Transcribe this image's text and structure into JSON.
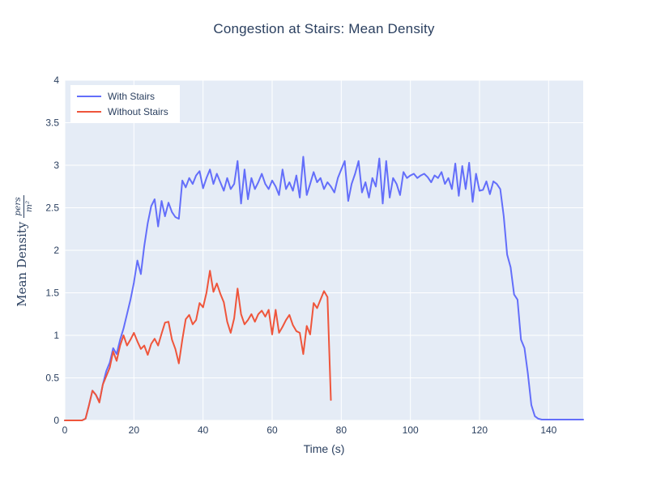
{
  "chart_data": {
    "type": "line",
    "title": "Congestion at Stairs: Mean Density",
    "xlabel": "Time (s)",
    "ylabel": "Mean Density pers/m²",
    "ylabel_text": "Mean Density",
    "ylabel_unit_numerator": "pers",
    "ylabel_unit_denominator": "m²",
    "xlim": [
      0,
      150
    ],
    "ylim": [
      0,
      4
    ],
    "xticks": [
      0,
      20,
      40,
      60,
      80,
      100,
      120,
      140
    ],
    "yticks": [
      0,
      0.5,
      1,
      1.5,
      2,
      2.5,
      3,
      3.5,
      4
    ],
    "grid": true,
    "legend_position": "top-left",
    "plot_background": "#e5ecf6",
    "grid_color": "#ffffff",
    "text_color": "#2a3f5f",
    "series": [
      {
        "name": "With Stairs",
        "color": "#636efa",
        "x": [
          0,
          1,
          2,
          3,
          4,
          5,
          6,
          7,
          8,
          9,
          10,
          11,
          12,
          13,
          14,
          15,
          16,
          17,
          18,
          19,
          20,
          21,
          22,
          23,
          24,
          25,
          26,
          27,
          28,
          29,
          30,
          31,
          32,
          33,
          34,
          35,
          36,
          37,
          38,
          39,
          40,
          41,
          42,
          43,
          44,
          45,
          46,
          47,
          48,
          49,
          50,
          51,
          52,
          53,
          54,
          55,
          56,
          57,
          58,
          59,
          60,
          61,
          62,
          63,
          64,
          65,
          66,
          67,
          68,
          69,
          70,
          71,
          72,
          73,
          74,
          75,
          76,
          77,
          78,
          79,
          80,
          81,
          82,
          83,
          84,
          85,
          86,
          87,
          88,
          89,
          90,
          91,
          92,
          93,
          94,
          95,
          96,
          97,
          98,
          99,
          100,
          101,
          102,
          103,
          104,
          105,
          106,
          107,
          108,
          109,
          110,
          111,
          112,
          113,
          114,
          115,
          116,
          117,
          118,
          119,
          120,
          121,
          122,
          123,
          124,
          125,
          126,
          127,
          128,
          129,
          130,
          131,
          132,
          133,
          134,
          135,
          136,
          137,
          138,
          139,
          140,
          141,
          142,
          143,
          144,
          145,
          146,
          147,
          148,
          149,
          150
        ],
        "y": [
          0,
          0,
          0,
          0,
          0,
          0,
          0.02,
          0.18,
          0.35,
          0.3,
          0.22,
          0.42,
          0.58,
          0.68,
          0.85,
          0.78,
          0.95,
          1.08,
          1.25,
          1.42,
          1.62,
          1.88,
          1.72,
          2.05,
          2.32,
          2.52,
          2.6,
          2.28,
          2.58,
          2.4,
          2.56,
          2.45,
          2.39,
          2.37,
          2.82,
          2.74,
          2.85,
          2.78,
          2.88,
          2.93,
          2.73,
          2.85,
          2.95,
          2.78,
          2.9,
          2.8,
          2.7,
          2.85,
          2.72,
          2.78,
          3.05,
          2.55,
          2.95,
          2.6,
          2.85,
          2.72,
          2.8,
          2.9,
          2.78,
          2.72,
          2.82,
          2.75,
          2.65,
          2.95,
          2.72,
          2.8,
          2.7,
          2.88,
          2.62,
          3.1,
          2.65,
          2.78,
          2.92,
          2.8,
          2.85,
          2.72,
          2.8,
          2.75,
          2.68,
          2.85,
          2.95,
          3.05,
          2.58,
          2.78,
          2.9,
          3.05,
          2.68,
          2.8,
          2.62,
          2.85,
          2.75,
          3.08,
          2.55,
          3.05,
          2.62,
          2.85,
          2.78,
          2.65,
          2.92,
          2.85,
          2.88,
          2.9,
          2.85,
          2.88,
          2.9,
          2.86,
          2.8,
          2.88,
          2.85,
          2.92,
          2.78,
          2.85,
          2.72,
          3.02,
          2.64,
          2.99,
          2.72,
          3.03,
          2.57,
          2.9,
          2.7,
          2.71,
          2.81,
          2.66,
          2.81,
          2.78,
          2.72,
          2.4,
          1.95,
          1.8,
          1.48,
          1.42,
          0.95,
          0.85,
          0.55,
          0.18,
          0.05,
          0.02,
          0.01,
          0.01,
          0.01,
          0.01,
          0.01,
          0.01,
          0.01,
          0.01,
          0.01,
          0.01,
          0.01,
          0.01,
          0.01
        ]
      },
      {
        "name": "Without Stairs",
        "color": "#ef553b",
        "x": [
          0,
          1,
          2,
          3,
          4,
          5,
          6,
          7,
          8,
          9,
          10,
          11,
          12,
          13,
          14,
          15,
          16,
          17,
          18,
          19,
          20,
          21,
          22,
          23,
          24,
          25,
          26,
          27,
          28,
          29,
          30,
          31,
          32,
          33,
          34,
          35,
          36,
          37,
          38,
          39,
          40,
          41,
          42,
          43,
          44,
          45,
          46,
          47,
          48,
          49,
          50,
          51,
          52,
          53,
          54,
          55,
          56,
          57,
          58,
          59,
          60,
          61,
          62,
          63,
          64,
          65,
          66,
          67,
          68,
          69,
          70,
          71,
          72,
          73,
          74,
          75,
          76,
          77
        ],
        "y": [
          0,
          0,
          0,
          0,
          0,
          0,
          0.02,
          0.18,
          0.35,
          0.3,
          0.21,
          0.42,
          0.52,
          0.62,
          0.81,
          0.7,
          0.88,
          1,
          0.88,
          0.95,
          1.03,
          0.93,
          0.84,
          0.88,
          0.77,
          0.9,
          0.96,
          0.88,
          1.02,
          1.15,
          1.16,
          0.95,
          0.84,
          0.67,
          0.95,
          1.19,
          1.24,
          1.13,
          1.18,
          1.38,
          1.33,
          1.5,
          1.76,
          1.51,
          1.61,
          1.49,
          1.39,
          1.16,
          1.03,
          1.2,
          1.55,
          1.25,
          1.13,
          1.18,
          1.25,
          1.16,
          1.25,
          1.29,
          1.22,
          1.3,
          1.01,
          1.3,
          1.03,
          1.1,
          1.18,
          1.24,
          1.12,
          1.05,
          1.03,
          0.78,
          1.11,
          1.01,
          1.38,
          1.32,
          1.42,
          1.52,
          1.45,
          0.24
        ]
      }
    ]
  }
}
